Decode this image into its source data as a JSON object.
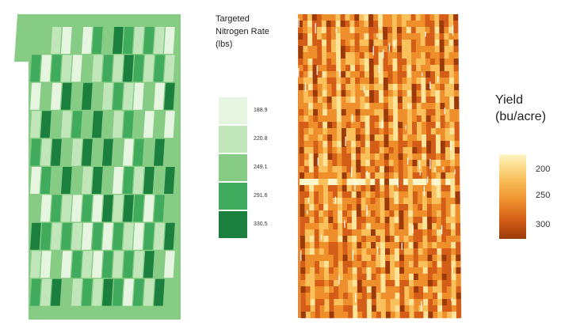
{
  "nitrogen_legend": {
    "title_lines": [
      "Targeted",
      "Nitrogen Rate",
      "(lbs)"
    ],
    "items": [
      {
        "label": "188.9",
        "color": "#e5f5e0"
      },
      {
        "label": "220.8",
        "color": "#c0e6b9"
      },
      {
        "label": "249.1",
        "color": "#86cc85"
      },
      {
        "label": "291.6",
        "color": "#41ab5d"
      },
      {
        "label": "330.5",
        "color": "#1b7f3d"
      }
    ]
  },
  "yield_legend": {
    "title_lines": [
      "Yield",
      "(bu/acre)"
    ],
    "ticks": [
      "200",
      "250",
      "300"
    ],
    "tick_values": [
      200,
      250,
      300
    ],
    "range": [
      180,
      315
    ]
  },
  "colors": {
    "field_border": "#86cc85",
    "yield_low": "#9c3a0a",
    "yield_high": "#fff6c9"
  }
}
